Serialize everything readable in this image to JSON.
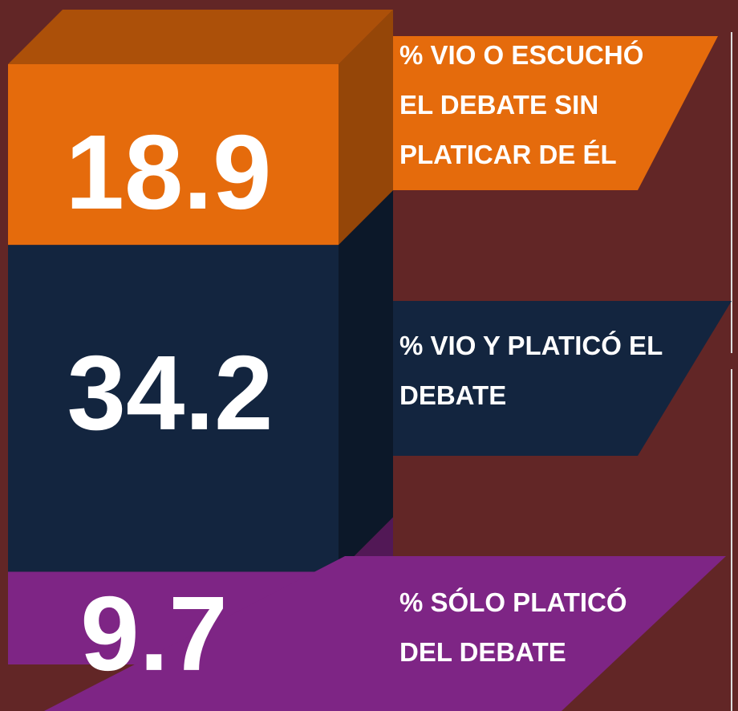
{
  "chart_data": {
    "type": "stacked_bar",
    "series": [
      {
        "name": "% SÓLO PLATICÓ DEL DEBATE",
        "color": "#7e2585",
        "values": [
          9.7
        ]
      },
      {
        "name": "% VIO Y PLATICÓ EL DEBATE",
        "color": "#13253f",
        "values": [
          34.2
        ]
      },
      {
        "name": "% VIO O ESCUCHÓ EL DEBATE SIN PLATICAR DE ÉL",
        "color": "#e56b0c",
        "values": [
          18.9
        ]
      }
    ]
  }
}
